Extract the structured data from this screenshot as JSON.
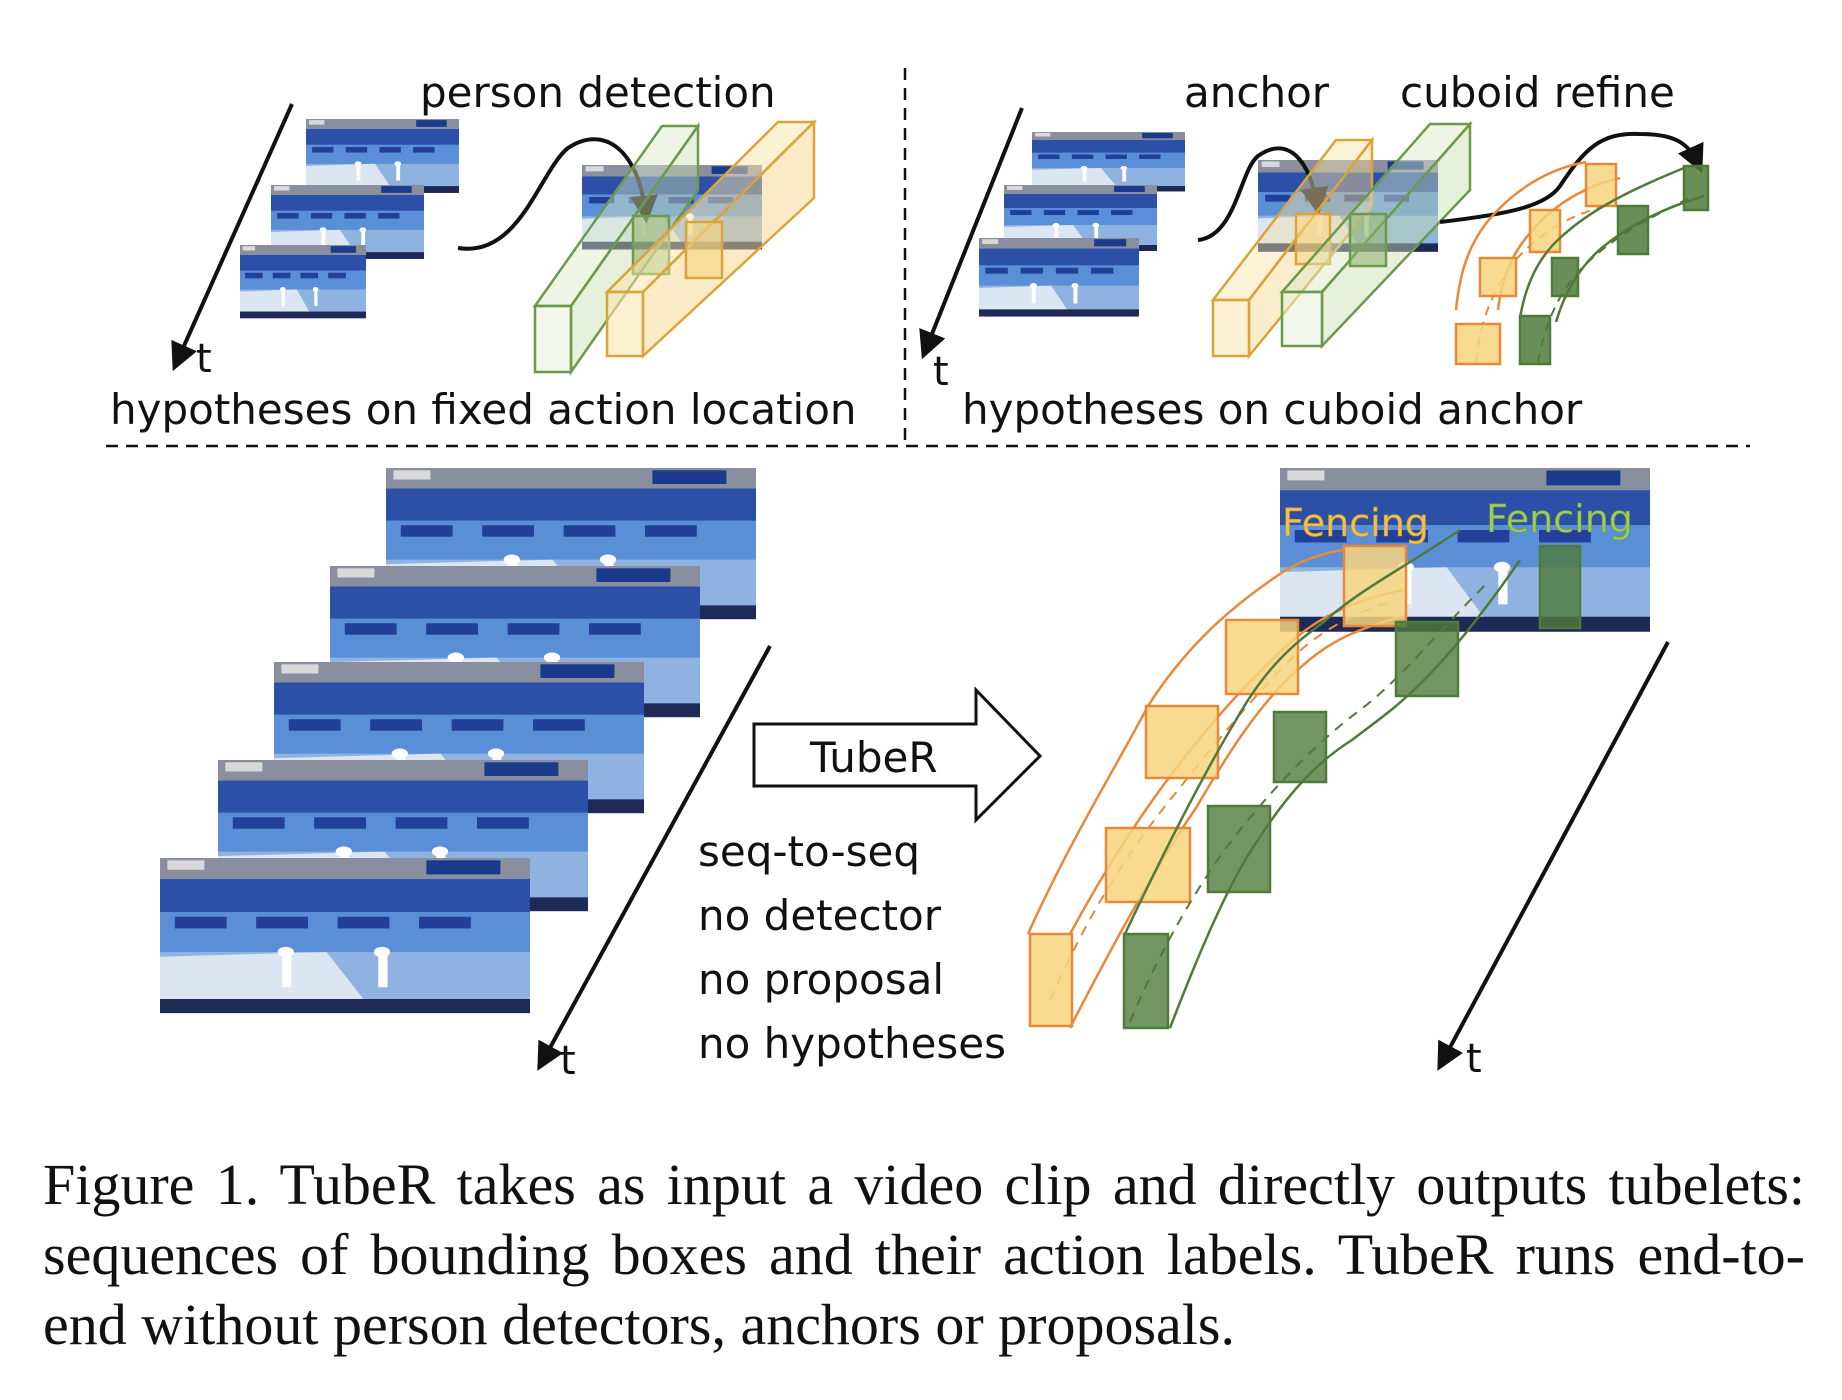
{
  "top_left": {
    "label_detection": "person detection",
    "time_axis": "t",
    "caption": "hypotheses on fixed action location"
  },
  "top_right": {
    "label_anchor": "anchor",
    "label_refine": "cuboid refine",
    "time_axis": "t",
    "caption": "hypotheses on cuboid anchor"
  },
  "bottom": {
    "input_time_axis": "t",
    "arrow_label": "TubeR",
    "properties": [
      "seq-to-seq",
      "no detector",
      "no proposal",
      "no hypotheses"
    ],
    "action_labels": [
      "Fencing",
      "Fencing"
    ],
    "output_time_axis": "t"
  },
  "caption": "Figure 1. TubeR takes as input a video clip and directly outputs tubelets: sequences of bounding boxes and their action labels. TubeR runs end-to-end without person detectors, anchors or proposals.",
  "colors": {
    "orange": "#e8893a",
    "orange_fill": "#f7d57e",
    "green": "#6b9a4a",
    "green_fill": "#8fb06e",
    "green_dark_fill": "#4f7a3a",
    "frame_blue": "#3b6fc4",
    "label_yellow": "#f2c04a",
    "label_green": "#9ccc5a"
  }
}
